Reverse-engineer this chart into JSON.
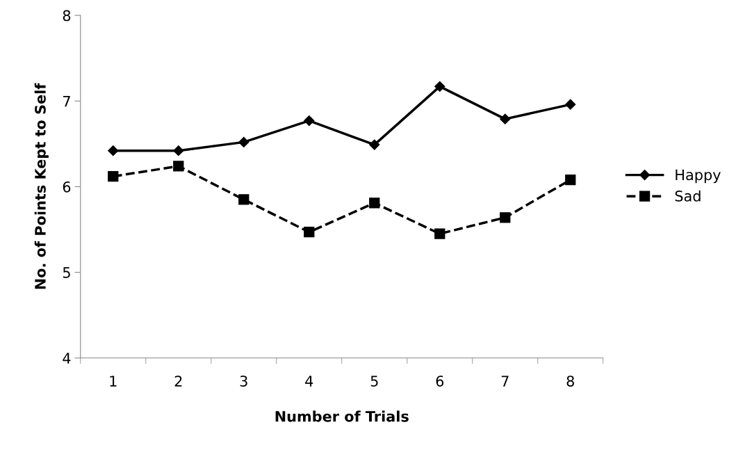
{
  "chart_data": {
    "type": "line",
    "xlabel": "Number of Trials",
    "ylabel": "No. of Points Kept to Self",
    "categories": [
      "1",
      "2",
      "3",
      "4",
      "5",
      "6",
      "7",
      "8"
    ],
    "series": [
      {
        "name": "Happy",
        "color": "#000000",
        "marker": "diamond",
        "line_style": "solid",
        "values": [
          6.42,
          6.42,
          6.52,
          6.77,
          6.49,
          7.17,
          6.79,
          6.96
        ]
      },
      {
        "name": "Sad",
        "color": "#000000",
        "marker": "square",
        "line_style": "dashed",
        "values": [
          6.12,
          6.24,
          5.85,
          5.47,
          5.81,
          5.45,
          5.64,
          6.08
        ]
      }
    ],
    "ylim": [
      4,
      8
    ],
    "yticks": [
      4,
      5,
      6,
      7,
      8
    ],
    "grid": false,
    "legend": "right"
  }
}
